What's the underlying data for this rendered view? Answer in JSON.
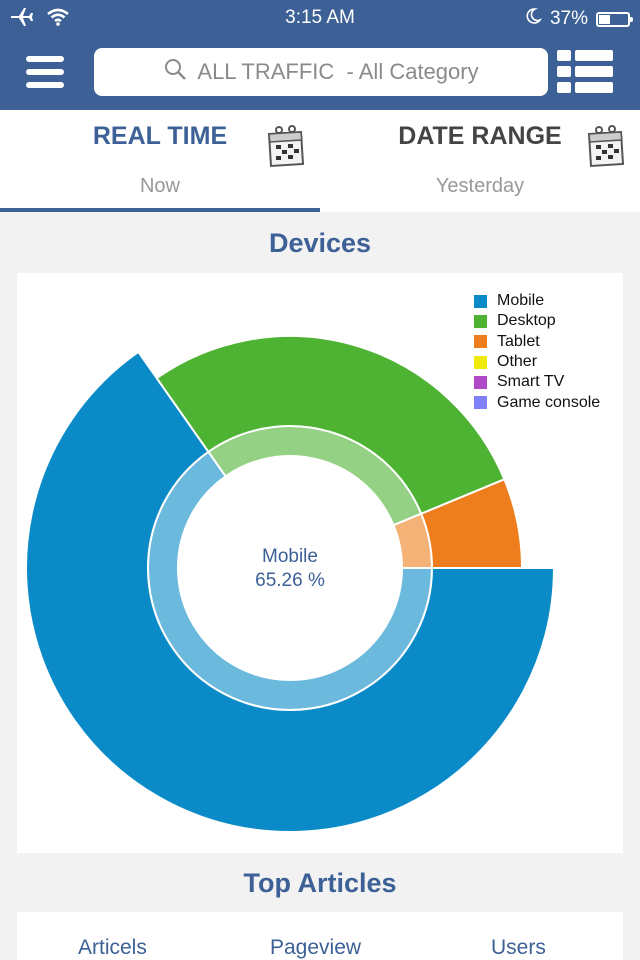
{
  "status_bar": {
    "time": "3:15 AM",
    "battery": "37%",
    "battery_level": 0.37
  },
  "search": {
    "label": "ALL TRAFFIC  - All Category"
  },
  "tabs": [
    {
      "title": "REAL TIME",
      "subtitle": "Now",
      "active": true
    },
    {
      "title": "DATE RANGE",
      "subtitle": "Yesterday",
      "active": false
    }
  ],
  "devices": {
    "title": "Devices",
    "center_label": {
      "name": "Mobile",
      "value": "65.26 %"
    }
  },
  "chart_data": {
    "type": "pie",
    "categories": [
      "Mobile",
      "Desktop",
      "Tablet",
      "Other",
      "Smart TV",
      "Game console"
    ],
    "values": [
      65.26,
      28.5,
      6.24,
      0,
      0,
      0
    ],
    "colors": [
      "#0a8bc8",
      "#4eb233",
      "#ee7e1d",
      "#eeea0e",
      "#b048c8",
      "#8080f8"
    ],
    "legend_position": "top-right",
    "selected": "Mobile"
  },
  "top_articles": {
    "title": "Top Articles",
    "columns": [
      "Articels",
      "Pageview",
      "Users"
    ]
  }
}
